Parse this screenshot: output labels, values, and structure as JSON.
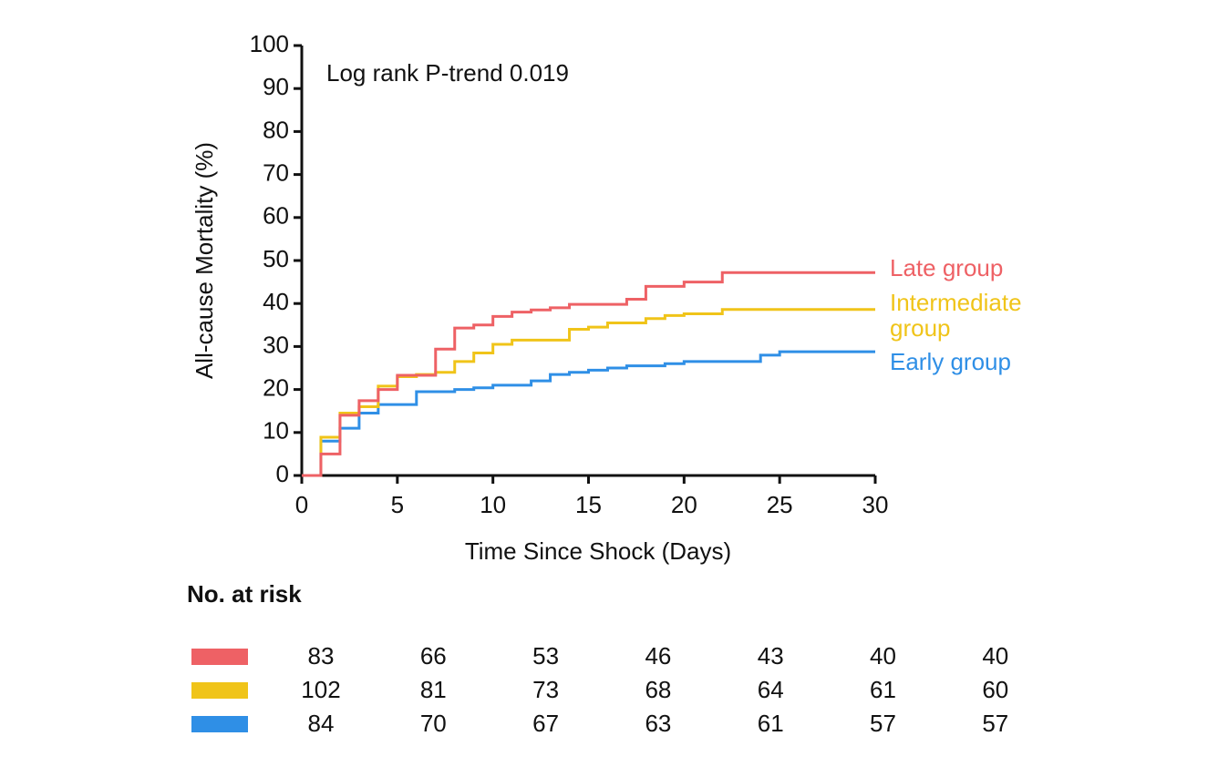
{
  "chart_data": {
    "type": "step",
    "annotation": "Log rank P-trend 0.019",
    "x_label": "Time Since Shock (Days)",
    "y_label": "All-cause Mortality (%)",
    "xlim": [
      0,
      30
    ],
    "xticks": [
      0,
      5,
      10,
      15,
      20,
      25,
      30
    ],
    "ylim": [
      0,
      100
    ],
    "yticks": [
      0,
      10,
      20,
      30,
      40,
      50,
      60,
      70,
      80,
      90,
      100
    ],
    "series": [
      {
        "name": "Late group",
        "color": "#ee6165",
        "x": [
          0,
          1,
          2,
          3,
          4,
          5,
          7,
          8,
          9,
          10,
          11,
          12,
          13,
          14,
          17,
          18,
          20,
          22,
          30
        ],
        "values": [
          0,
          5,
          14,
          17.4,
          20,
          23.3,
          29.4,
          34.3,
          35,
          37,
          38,
          38.5,
          39,
          39.8,
          41,
          44,
          45,
          47.2,
          47.2
        ]
      },
      {
        "name": "Intermediate group",
        "color": "#f0c419",
        "x": [
          0,
          1,
          2,
          3,
          4,
          5,
          6,
          7,
          8,
          9,
          10,
          11,
          14,
          15,
          16,
          18,
          19,
          20,
          22,
          30
        ],
        "values": [
          0,
          8.9,
          14.5,
          16,
          20.8,
          23,
          23.5,
          24,
          26.5,
          28.5,
          30.5,
          31.5,
          34,
          34.5,
          35.5,
          36.5,
          37.2,
          37.6,
          38.6,
          38.6
        ]
      },
      {
        "name": "Early group",
        "color": "#2f8fe6",
        "x": [
          0,
          1,
          2,
          3,
          4,
          6,
          8,
          9,
          10,
          12,
          13,
          14,
          15,
          16,
          17,
          19,
          20,
          24,
          25,
          30
        ],
        "values": [
          0,
          8,
          11,
          14.5,
          16.5,
          19.5,
          20,
          20.4,
          21,
          22,
          23.5,
          24,
          24.5,
          25,
          25.5,
          26,
          26.5,
          28,
          28.8,
          28.8
        ]
      }
    ]
  },
  "risk_table": {
    "title": "No. at risk",
    "rows": [
      {
        "color": "#ee6165",
        "values": [
          83,
          66,
          53,
          46,
          43,
          40,
          40
        ]
      },
      {
        "color": "#f0c419",
        "values": [
          102,
          81,
          73,
          68,
          64,
          61,
          60
        ]
      },
      {
        "color": "#2f8fe6",
        "values": [
          84,
          70,
          67,
          63,
          61,
          57,
          57
        ]
      }
    ]
  }
}
